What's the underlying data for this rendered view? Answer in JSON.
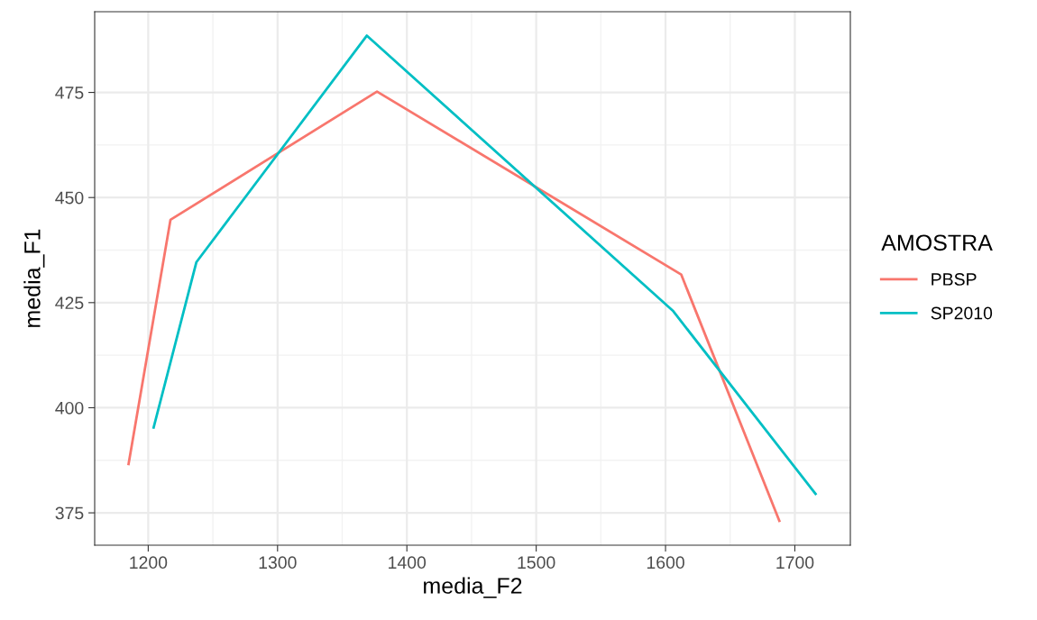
{
  "chart_data": {
    "type": "line",
    "xlabel": "media_F2",
    "ylabel": "media_F1",
    "legend_title": "AMOSTRA",
    "legend": "right",
    "grid": true,
    "xlim": [
      1158.6,
      1742.9
    ],
    "ylim": [
      367.3,
      494.2
    ],
    "xticks": [
      1200,
      1300,
      1400,
      1500,
      1600,
      1700
    ],
    "yticks": [
      375,
      400,
      425,
      450,
      475
    ],
    "series": [
      {
        "name": "PBSP",
        "color": "#f8766d",
        "x": [
          1184.8,
          1217.2,
          1376.9,
          1612.1,
          1688
        ],
        "values": [
          386.6,
          444.7,
          475.2,
          431.7,
          373.1
        ]
      },
      {
        "name": "SP2010",
        "color": "#00bfc4",
        "x": [
          1204.2,
          1237.2,
          1369,
          1605.6,
          1716
        ],
        "values": [
          395.3,
          434.6,
          488.5,
          423.1,
          379.5
        ]
      }
    ]
  }
}
